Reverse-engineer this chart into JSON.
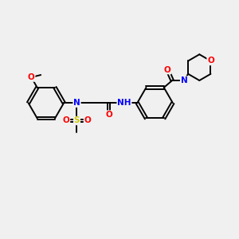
{
  "background_color": "#f0f0f0",
  "bond_color": "#000000",
  "atom_colors": {
    "C": "#000000",
    "N": "#0000ff",
    "O": "#ff0000",
    "S": "#cccc00",
    "H": "#666666"
  },
  "figsize": [
    3.0,
    3.0
  ],
  "dpi": 100
}
